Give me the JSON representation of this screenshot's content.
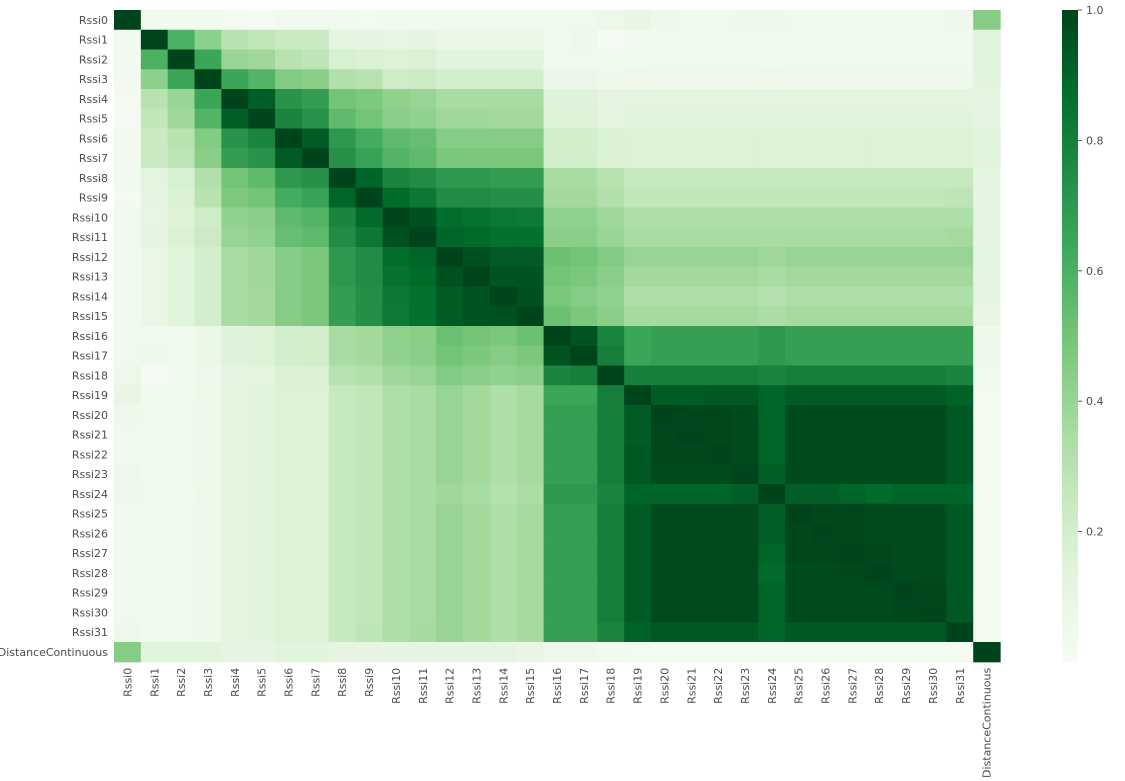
{
  "chart_data": {
    "type": "heatmap",
    "labels": [
      "Rssi0",
      "Rssi1",
      "Rssi2",
      "Rssi3",
      "Rssi4",
      "Rssi5",
      "Rssi6",
      "Rssi7",
      "Rssi8",
      "Rssi9",
      "Rssi10",
      "Rssi11",
      "Rssi12",
      "Rssi13",
      "Rssi14",
      "Rssi15",
      "Rssi16",
      "Rssi17",
      "Rssi18",
      "Rssi19",
      "Rssi20",
      "Rssi21",
      "Rssi22",
      "Rssi23",
      "Rssi24",
      "Rssi25",
      "Rssi26",
      "Rssi27",
      "Rssi28",
      "Rssi29",
      "Rssi30",
      "Rssi31",
      "DistanceContinuous"
    ],
    "colormap": "Greens",
    "color_range": [
      0.0,
      1.0
    ],
    "colorbar_ticks": [
      0.2,
      0.4,
      0.6,
      0.8,
      1.0
    ],
    "colorbar_tick_labels": [
      "0.2",
      "0.4",
      "0.6",
      "0.8",
      "1.0"
    ],
    "matrix": [
      [
        1.0,
        0.04,
        0.04,
        0.04,
        0.03,
        0.02,
        0.04,
        0.04,
        0.04,
        0.03,
        0.05,
        0.05,
        0.05,
        0.05,
        0.05,
        0.05,
        0.05,
        0.05,
        0.07,
        0.1,
        0.06,
        0.05,
        0.05,
        0.06,
        0.06,
        0.05,
        0.05,
        0.05,
        0.05,
        0.05,
        0.05,
        0.06,
        0.45
      ],
      [
        0.04,
        1.0,
        0.6,
        0.43,
        0.3,
        0.27,
        0.24,
        0.24,
        0.13,
        0.12,
        0.11,
        0.12,
        0.09,
        0.09,
        0.09,
        0.09,
        0.04,
        0.06,
        0.02,
        0.04,
        0.05,
        0.04,
        0.04,
        0.04,
        0.05,
        0.05,
        0.05,
        0.04,
        0.04,
        0.04,
        0.04,
        0.04,
        0.14
      ],
      [
        0.04,
        0.6,
        1.0,
        0.65,
        0.4,
        0.38,
        0.3,
        0.28,
        0.18,
        0.17,
        0.16,
        0.17,
        0.14,
        0.14,
        0.14,
        0.14,
        0.05,
        0.05,
        0.04,
        0.05,
        0.05,
        0.05,
        0.05,
        0.05,
        0.05,
        0.05,
        0.05,
        0.05,
        0.05,
        0.05,
        0.05,
        0.05,
        0.14
      ],
      [
        0.04,
        0.43,
        0.65,
        1.0,
        0.65,
        0.58,
        0.46,
        0.44,
        0.32,
        0.3,
        0.22,
        0.23,
        0.2,
        0.2,
        0.2,
        0.2,
        0.08,
        0.08,
        0.06,
        0.07,
        0.06,
        0.06,
        0.06,
        0.06,
        0.07,
        0.06,
        0.06,
        0.06,
        0.06,
        0.06,
        0.06,
        0.06,
        0.14
      ],
      [
        0.03,
        0.3,
        0.4,
        0.65,
        1.0,
        0.92,
        0.72,
        0.68,
        0.5,
        0.47,
        0.42,
        0.4,
        0.35,
        0.35,
        0.35,
        0.35,
        0.15,
        0.15,
        0.12,
        0.13,
        0.13,
        0.13,
        0.13,
        0.13,
        0.13,
        0.13,
        0.13,
        0.13,
        0.13,
        0.13,
        0.13,
        0.13,
        0.12
      ],
      [
        0.02,
        0.27,
        0.38,
        0.58,
        0.92,
        1.0,
        0.78,
        0.72,
        0.55,
        0.5,
        0.44,
        0.42,
        0.38,
        0.38,
        0.37,
        0.37,
        0.16,
        0.16,
        0.13,
        0.14,
        0.14,
        0.14,
        0.14,
        0.14,
        0.14,
        0.14,
        0.14,
        0.14,
        0.14,
        0.14,
        0.14,
        0.14,
        0.12
      ],
      [
        0.04,
        0.24,
        0.3,
        0.46,
        0.72,
        0.78,
        1.0,
        0.93,
        0.7,
        0.62,
        0.55,
        0.53,
        0.45,
        0.45,
        0.45,
        0.45,
        0.2,
        0.2,
        0.17,
        0.16,
        0.16,
        0.16,
        0.16,
        0.16,
        0.16,
        0.16,
        0.16,
        0.16,
        0.16,
        0.16,
        0.16,
        0.16,
        0.14
      ],
      [
        0.04,
        0.24,
        0.28,
        0.44,
        0.68,
        0.72,
        0.93,
        1.0,
        0.73,
        0.66,
        0.58,
        0.55,
        0.48,
        0.48,
        0.48,
        0.48,
        0.2,
        0.21,
        0.17,
        0.16,
        0.16,
        0.16,
        0.16,
        0.16,
        0.16,
        0.16,
        0.16,
        0.16,
        0.16,
        0.16,
        0.16,
        0.16,
        0.14
      ],
      [
        0.04,
        0.13,
        0.18,
        0.32,
        0.5,
        0.55,
        0.7,
        0.73,
        1.0,
        0.9,
        0.78,
        0.75,
        0.7,
        0.7,
        0.68,
        0.68,
        0.35,
        0.35,
        0.3,
        0.25,
        0.25,
        0.25,
        0.25,
        0.25,
        0.25,
        0.25,
        0.25,
        0.25,
        0.25,
        0.25,
        0.25,
        0.25,
        0.12
      ],
      [
        0.03,
        0.12,
        0.17,
        0.3,
        0.47,
        0.5,
        0.62,
        0.66,
        0.9,
        1.0,
        0.88,
        0.83,
        0.75,
        0.75,
        0.74,
        0.74,
        0.37,
        0.37,
        0.32,
        0.27,
        0.27,
        0.27,
        0.27,
        0.27,
        0.27,
        0.27,
        0.27,
        0.27,
        0.27,
        0.27,
        0.27,
        0.28,
        0.12
      ],
      [
        0.05,
        0.11,
        0.16,
        0.22,
        0.42,
        0.44,
        0.55,
        0.58,
        0.78,
        0.88,
        1.0,
        0.96,
        0.87,
        0.85,
        0.83,
        0.82,
        0.42,
        0.42,
        0.38,
        0.33,
        0.33,
        0.33,
        0.33,
        0.33,
        0.33,
        0.33,
        0.33,
        0.33,
        0.33,
        0.33,
        0.33,
        0.33,
        0.12
      ],
      [
        0.05,
        0.12,
        0.17,
        0.23,
        0.4,
        0.42,
        0.53,
        0.55,
        0.75,
        0.83,
        0.96,
        1.0,
        0.9,
        0.88,
        0.86,
        0.86,
        0.44,
        0.44,
        0.4,
        0.35,
        0.35,
        0.35,
        0.35,
        0.35,
        0.35,
        0.35,
        0.35,
        0.35,
        0.35,
        0.35,
        0.35,
        0.36,
        0.12
      ],
      [
        0.05,
        0.09,
        0.14,
        0.2,
        0.35,
        0.38,
        0.45,
        0.48,
        0.7,
        0.75,
        0.87,
        0.9,
        1.0,
        0.96,
        0.93,
        0.93,
        0.52,
        0.5,
        0.46,
        0.4,
        0.4,
        0.4,
        0.4,
        0.4,
        0.38,
        0.4,
        0.4,
        0.4,
        0.4,
        0.4,
        0.4,
        0.4,
        0.12
      ],
      [
        0.05,
        0.09,
        0.14,
        0.2,
        0.35,
        0.38,
        0.45,
        0.48,
        0.7,
        0.75,
        0.85,
        0.88,
        0.96,
        1.0,
        0.95,
        0.95,
        0.5,
        0.48,
        0.44,
        0.37,
        0.37,
        0.37,
        0.37,
        0.37,
        0.35,
        0.37,
        0.37,
        0.37,
        0.37,
        0.37,
        0.37,
        0.37,
        0.12
      ],
      [
        0.05,
        0.09,
        0.14,
        0.2,
        0.35,
        0.37,
        0.45,
        0.48,
        0.68,
        0.74,
        0.83,
        0.86,
        0.93,
        0.95,
        1.0,
        0.96,
        0.48,
        0.45,
        0.42,
        0.33,
        0.33,
        0.33,
        0.33,
        0.33,
        0.31,
        0.33,
        0.33,
        0.33,
        0.33,
        0.33,
        0.33,
        0.33,
        0.12
      ],
      [
        0.05,
        0.09,
        0.14,
        0.2,
        0.35,
        0.37,
        0.45,
        0.48,
        0.68,
        0.74,
        0.82,
        0.86,
        0.93,
        0.95,
        0.96,
        1.0,
        0.52,
        0.48,
        0.44,
        0.36,
        0.36,
        0.36,
        0.36,
        0.36,
        0.34,
        0.36,
        0.36,
        0.36,
        0.36,
        0.36,
        0.36,
        0.36,
        0.1
      ],
      [
        0.05,
        0.04,
        0.05,
        0.08,
        0.15,
        0.16,
        0.2,
        0.2,
        0.35,
        0.37,
        0.42,
        0.44,
        0.52,
        0.5,
        0.48,
        0.52,
        1.0,
        0.95,
        0.78,
        0.65,
        0.67,
        0.67,
        0.67,
        0.67,
        0.7,
        0.67,
        0.67,
        0.67,
        0.67,
        0.67,
        0.67,
        0.67,
        0.06
      ],
      [
        0.05,
        0.06,
        0.05,
        0.08,
        0.15,
        0.16,
        0.2,
        0.21,
        0.35,
        0.37,
        0.42,
        0.44,
        0.5,
        0.48,
        0.45,
        0.48,
        0.95,
        1.0,
        0.8,
        0.65,
        0.67,
        0.67,
        0.67,
        0.67,
        0.7,
        0.67,
        0.67,
        0.67,
        0.67,
        0.67,
        0.67,
        0.67,
        0.06
      ],
      [
        0.07,
        0.02,
        0.04,
        0.06,
        0.12,
        0.13,
        0.17,
        0.17,
        0.3,
        0.32,
        0.38,
        0.4,
        0.46,
        0.44,
        0.42,
        0.44,
        0.78,
        0.8,
        1.0,
        0.8,
        0.8,
        0.8,
        0.8,
        0.8,
        0.78,
        0.8,
        0.8,
        0.8,
        0.8,
        0.8,
        0.8,
        0.78,
        0.04
      ],
      [
        0.1,
        0.04,
        0.05,
        0.07,
        0.13,
        0.14,
        0.16,
        0.16,
        0.25,
        0.27,
        0.33,
        0.35,
        0.4,
        0.37,
        0.33,
        0.36,
        0.65,
        0.65,
        0.8,
        1.0,
        0.93,
        0.93,
        0.94,
        0.94,
        0.9,
        0.93,
        0.93,
        0.93,
        0.93,
        0.93,
        0.93,
        0.91,
        0.03
      ],
      [
        0.06,
        0.05,
        0.05,
        0.06,
        0.13,
        0.14,
        0.16,
        0.16,
        0.25,
        0.27,
        0.33,
        0.35,
        0.4,
        0.37,
        0.33,
        0.36,
        0.67,
        0.67,
        0.8,
        0.93,
        1.0,
        0.99,
        0.99,
        0.98,
        0.9,
        0.98,
        0.98,
        0.98,
        0.98,
        0.98,
        0.98,
        0.94,
        0.03
      ],
      [
        0.05,
        0.04,
        0.05,
        0.06,
        0.13,
        0.14,
        0.16,
        0.16,
        0.25,
        0.27,
        0.33,
        0.35,
        0.4,
        0.37,
        0.33,
        0.36,
        0.67,
        0.67,
        0.8,
        0.93,
        0.99,
        1.0,
        0.99,
        0.98,
        0.9,
        0.98,
        0.98,
        0.98,
        0.98,
        0.98,
        0.98,
        0.94,
        0.03
      ],
      [
        0.05,
        0.04,
        0.05,
        0.06,
        0.13,
        0.14,
        0.16,
        0.16,
        0.25,
        0.27,
        0.33,
        0.35,
        0.4,
        0.37,
        0.33,
        0.36,
        0.67,
        0.67,
        0.8,
        0.94,
        0.99,
        0.99,
        1.0,
        0.98,
        0.9,
        0.98,
        0.98,
        0.98,
        0.98,
        0.98,
        0.98,
        0.94,
        0.03
      ],
      [
        0.06,
        0.04,
        0.05,
        0.06,
        0.13,
        0.14,
        0.16,
        0.16,
        0.25,
        0.27,
        0.33,
        0.35,
        0.4,
        0.37,
        0.33,
        0.36,
        0.67,
        0.67,
        0.8,
        0.94,
        0.98,
        0.98,
        0.98,
        1.0,
        0.92,
        0.98,
        0.98,
        0.98,
        0.98,
        0.98,
        0.98,
        0.94,
        0.03
      ],
      [
        0.06,
        0.05,
        0.05,
        0.07,
        0.13,
        0.14,
        0.16,
        0.16,
        0.25,
        0.27,
        0.33,
        0.35,
        0.38,
        0.35,
        0.31,
        0.34,
        0.7,
        0.7,
        0.78,
        0.9,
        0.9,
        0.9,
        0.9,
        0.92,
        1.0,
        0.92,
        0.92,
        0.9,
        0.88,
        0.9,
        0.9,
        0.9,
        0.03
      ],
      [
        0.05,
        0.05,
        0.05,
        0.06,
        0.13,
        0.14,
        0.16,
        0.16,
        0.25,
        0.27,
        0.33,
        0.35,
        0.4,
        0.37,
        0.33,
        0.36,
        0.67,
        0.67,
        0.8,
        0.93,
        0.98,
        0.98,
        0.98,
        0.98,
        0.92,
        1.0,
        0.99,
        0.99,
        0.98,
        0.98,
        0.98,
        0.94,
        0.03
      ],
      [
        0.05,
        0.05,
        0.05,
        0.06,
        0.13,
        0.14,
        0.16,
        0.16,
        0.25,
        0.27,
        0.33,
        0.35,
        0.4,
        0.37,
        0.33,
        0.36,
        0.67,
        0.67,
        0.8,
        0.93,
        0.98,
        0.98,
        0.98,
        0.98,
        0.92,
        0.99,
        1.0,
        0.99,
        0.98,
        0.98,
        0.98,
        0.94,
        0.03
      ],
      [
        0.05,
        0.04,
        0.05,
        0.06,
        0.13,
        0.14,
        0.16,
        0.16,
        0.25,
        0.27,
        0.33,
        0.35,
        0.4,
        0.37,
        0.33,
        0.36,
        0.67,
        0.67,
        0.8,
        0.93,
        0.98,
        0.98,
        0.98,
        0.98,
        0.9,
        0.99,
        0.99,
        1.0,
        0.99,
        0.98,
        0.98,
        0.94,
        0.03
      ],
      [
        0.05,
        0.04,
        0.05,
        0.06,
        0.13,
        0.14,
        0.16,
        0.16,
        0.25,
        0.27,
        0.33,
        0.35,
        0.4,
        0.37,
        0.33,
        0.36,
        0.67,
        0.67,
        0.8,
        0.93,
        0.98,
        0.98,
        0.98,
        0.98,
        0.88,
        0.98,
        0.98,
        0.99,
        1.0,
        0.98,
        0.98,
        0.94,
        0.03
      ],
      [
        0.05,
        0.04,
        0.05,
        0.06,
        0.13,
        0.14,
        0.16,
        0.16,
        0.25,
        0.27,
        0.33,
        0.35,
        0.4,
        0.37,
        0.33,
        0.36,
        0.67,
        0.67,
        0.8,
        0.93,
        0.98,
        0.98,
        0.98,
        0.98,
        0.9,
        0.98,
        0.98,
        0.98,
        0.98,
        1.0,
        0.99,
        0.94,
        0.03
      ],
      [
        0.05,
        0.04,
        0.05,
        0.06,
        0.13,
        0.14,
        0.16,
        0.16,
        0.25,
        0.27,
        0.33,
        0.35,
        0.4,
        0.37,
        0.33,
        0.36,
        0.67,
        0.67,
        0.8,
        0.93,
        0.98,
        0.98,
        0.98,
        0.98,
        0.9,
        0.98,
        0.98,
        0.98,
        0.98,
        0.99,
        1.0,
        0.94,
        0.03
      ],
      [
        0.06,
        0.04,
        0.05,
        0.06,
        0.13,
        0.14,
        0.16,
        0.16,
        0.25,
        0.28,
        0.33,
        0.36,
        0.4,
        0.37,
        0.33,
        0.36,
        0.67,
        0.67,
        0.78,
        0.91,
        0.94,
        0.94,
        0.94,
        0.94,
        0.9,
        0.94,
        0.94,
        0.94,
        0.94,
        0.94,
        0.94,
        1.0,
        0.03
      ],
      [
        0.45,
        0.14,
        0.14,
        0.14,
        0.12,
        0.12,
        0.14,
        0.14,
        0.12,
        0.12,
        0.12,
        0.12,
        0.12,
        0.12,
        0.12,
        0.1,
        0.06,
        0.06,
        0.04,
        0.03,
        0.03,
        0.03,
        0.03,
        0.03,
        0.03,
        0.03,
        0.03,
        0.03,
        0.03,
        0.03,
        0.03,
        0.03,
        1.0
      ]
    ]
  }
}
